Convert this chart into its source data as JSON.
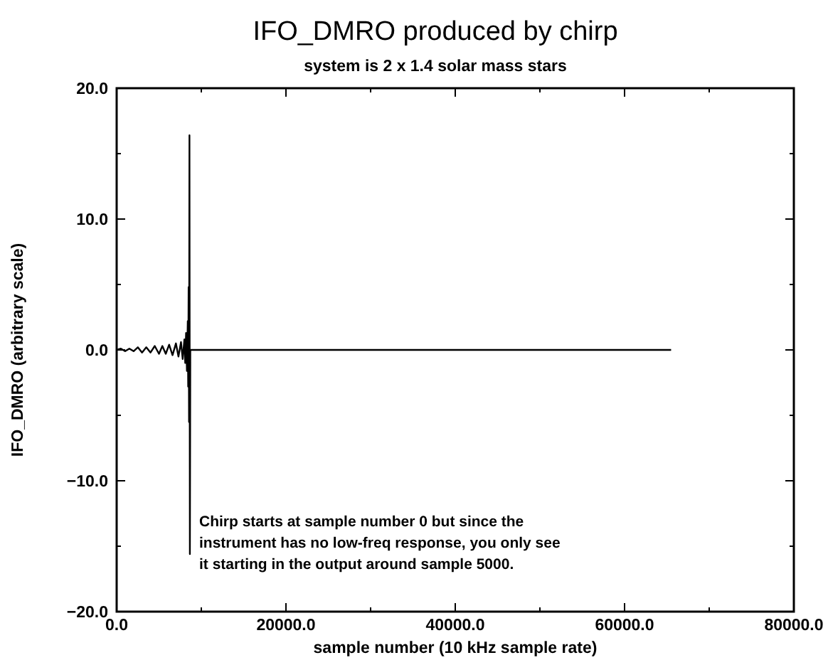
{
  "chart_data": {
    "type": "line",
    "title": "IFO_DMRO produced by chirp",
    "subtitle": "system is 2 x 1.4 solar mass stars",
    "xlabel": "sample number (10 kHz sample rate)",
    "ylabel": "IFO_DMRO (arbitrary scale)",
    "annotations": [
      "Chirp starts at sample number 0 but since the instrument has no low-freq response, you only see it starting in the output around sample 5000."
    ],
    "xlim": [
      0,
      80000
    ],
    "ylim": [
      -20,
      20
    ],
    "xticks": [
      {
        "value": 0,
        "label": "0.0"
      },
      {
        "value": 10000,
        "label": null
      },
      {
        "value": 20000,
        "label": "20000.0"
      },
      {
        "value": 30000,
        "label": null
      },
      {
        "value": 40000,
        "label": "40000.0"
      },
      {
        "value": 50000,
        "label": null
      },
      {
        "value": 60000,
        "label": "60000.0"
      },
      {
        "value": 70000,
        "label": null
      },
      {
        "value": 80000,
        "label": "80000.0"
      }
    ],
    "yticks": [
      {
        "value": -20,
        "label": "−20.0"
      },
      {
        "value": -15,
        "label": null
      },
      {
        "value": -10,
        "label": "−10.0"
      },
      {
        "value": -5,
        "label": null
      },
      {
        "value": 0,
        "label": "0.0"
      },
      {
        "value": 5,
        "label": null
      },
      {
        "value": 10,
        "label": "10.0"
      },
      {
        "value": 15,
        "label": null
      },
      {
        "value": 20,
        "label": "20.0"
      }
    ],
    "grid": false,
    "marker": "none",
    "line_style": "solid",
    "series": [
      {
        "color": "#000000",
        "x": [
          0,
          500,
          1000,
          1500,
          2000,
          2500,
          3000,
          3500,
          4000,
          4500,
          5000,
          5400,
          5800,
          6200,
          6600,
          7000,
          7300,
          7600,
          7800,
          8000,
          8100,
          8200,
          8300,
          8400,
          8450,
          8500,
          8550,
          8600,
          8650,
          8700,
          9000,
          20000,
          40000,
          65500
        ],
        "values": [
          0,
          0.1,
          -0.1,
          0.1,
          -0.1,
          0.2,
          -0.2,
          0.2,
          -0.2,
          0.3,
          -0.3,
          0.3,
          -0.3,
          0.4,
          -0.4,
          0.5,
          -0.5,
          0.6,
          -0.7,
          0.8,
          -1,
          1.3,
          -1.6,
          2.2,
          -2.8,
          4.8,
          -5.5,
          16.4,
          -15.6,
          0,
          0,
          0,
          0,
          0
        ]
      }
    ]
  }
}
